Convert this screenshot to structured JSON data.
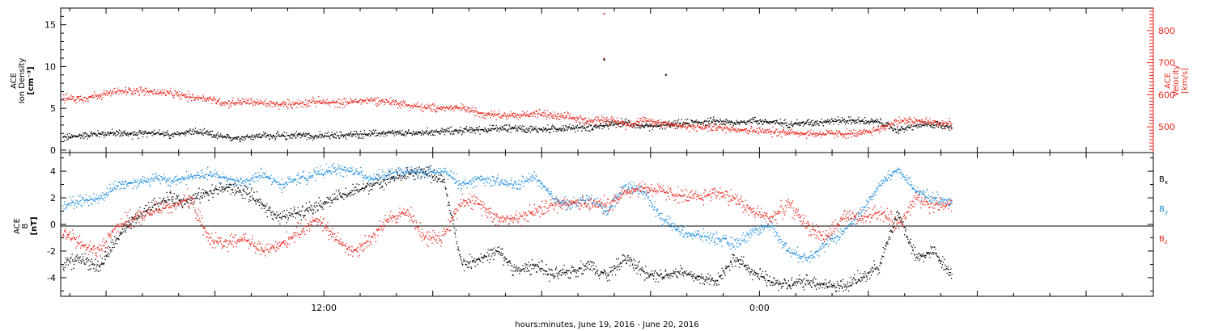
{
  "colors": {
    "black": "#000000",
    "red": "#e8261c",
    "blue": "#1f8ee0",
    "background": "#ffffff"
  },
  "chart_data": [
    {
      "type": "scatter",
      "panel": "top",
      "xlabel": "hours:minutes, June 19, 2016 - June 20, 2016",
      "x_unit": "hours since 2016-06-19 00:00",
      "xlim": [
        4.75,
        34.85
      ],
      "x_ticks": [
        {
          "value": 12,
          "label": "12:00"
        },
        {
          "value": 24,
          "label": "0:00"
        }
      ],
      "left_axis": {
        "label_lines": [
          "ACE",
          "Ion Density",
          "[cm⁻³]"
        ],
        "ylim": [
          -0.3,
          17
        ],
        "ticks": [
          0,
          5,
          10,
          15
        ]
      },
      "right_axis": {
        "label_lines": [
          "ACE",
          "Velocity",
          "[km/s]"
        ],
        "ylim": [
          420,
          870
        ],
        "ticks": [
          500,
          600,
          700,
          800
        ]
      },
      "series": [
        {
          "color": "black",
          "axis": "left",
          "x": [
            4.8,
            5.3,
            5.8,
            6.3,
            6.8,
            7.3,
            7.8,
            8.3,
            8.8,
            9.3,
            9.8,
            10.3,
            10.8,
            11.3,
            11.8,
            12.3,
            12.8,
            13.3,
            13.8,
            14.3,
            14.8,
            15.3,
            15.8,
            16.3,
            16.8,
            17.3,
            17.8,
            18.3,
            18.8,
            19.3,
            19.8,
            20.3,
            20.8,
            21.3,
            21.8,
            22.3,
            22.8,
            23.3,
            23.8,
            24.3,
            24.8,
            25.3,
            25.8,
            26.3,
            26.8,
            27.3,
            27.8,
            28.3,
            28.8,
            29.3
          ],
          "y": [
            1.5,
            1.8,
            2.0,
            2.1,
            1.9,
            2.2,
            1.8,
            2.3,
            2.0,
            1.5,
            1.6,
            1.8,
            1.7,
            1.9,
            1.7,
            1.8,
            1.9,
            2.0,
            2.1,
            2.0,
            2.2,
            2.3,
            2.4,
            2.5,
            2.6,
            2.7,
            2.5,
            2.6,
            2.7,
            2.8,
            3.0,
            3.4,
            2.8,
            3.0,
            3.2,
            3.4,
            3.5,
            3.3,
            3.6,
            3.4,
            3.2,
            3.3,
            3.5,
            3.6,
            3.5,
            3.4,
            2.4,
            3.0,
            3.1,
            2.9
          ],
          "scatter": 0.6
        },
        {
          "color": "red",
          "axis": "right",
          "x": [
            4.8,
            5.3,
            5.8,
            6.3,
            6.8,
            7.3,
            7.8,
            8.3,
            8.8,
            9.3,
            9.8,
            10.3,
            10.8,
            11.3,
            11.8,
            12.3,
            12.8,
            13.3,
            13.8,
            14.3,
            14.8,
            15.3,
            15.8,
            16.3,
            16.8,
            17.3,
            17.8,
            18.3,
            18.8,
            19.3,
            19.8,
            20.3,
            20.8,
            21.3,
            21.8,
            22.3,
            22.8,
            23.3,
            23.8,
            24.3,
            24.8,
            25.3,
            25.8,
            26.3,
            26.8,
            27.3,
            27.8,
            28.3,
            28.8,
            29.3
          ],
          "y": [
            590,
            590,
            600,
            610,
            615,
            610,
            605,
            595,
            590,
            575,
            580,
            575,
            570,
            575,
            580,
            575,
            580,
            585,
            580,
            570,
            560,
            560,
            560,
            545,
            540,
            535,
            545,
            535,
            530,
            520,
            525,
            510,
            520,
            515,
            505,
            500,
            500,
            495,
            490,
            485,
            485,
            480,
            480,
            480,
            480,
            495,
            520,
            520,
            515,
            510
          ],
          "scatter": 18
        }
      ],
      "outliers": [
        {
          "series": "red",
          "x": 19.7,
          "y": 855
        },
        {
          "series": "red",
          "x": 19.7,
          "y": 715
        },
        {
          "series": "black",
          "x": 19.7,
          "y": 10.9
        },
        {
          "series": "black",
          "x": 21.4,
          "y": 9.1
        }
      ]
    },
    {
      "type": "scatter",
      "panel": "bottom",
      "xlabel": "hours:minutes, June 19, 2016 - June 20, 2016",
      "xlim": [
        4.75,
        34.85
      ],
      "left_axis": {
        "label_lines": [
          "ACE",
          "B",
          "[nT]"
        ],
        "ylim": [
          -5.4,
          5.4
        ],
        "ticks": [
          -4,
          -2,
          0,
          2,
          4
        ]
      },
      "zero_line": 0,
      "legend_placement": "right",
      "series": [
        {
          "name": "Bx",
          "color": "black",
          "x": [
            4.8,
            5.3,
            5.8,
            6.3,
            6.8,
            7.3,
            7.8,
            8.3,
            8.8,
            9.3,
            9.8,
            10.3,
            10.8,
            11.3,
            11.8,
            12.3,
            12.8,
            13.3,
            13.8,
            14.3,
            14.8,
            15.3,
            15.8,
            16.3,
            16.8,
            17.3,
            17.8,
            18.3,
            18.8,
            19.3,
            19.8,
            20.3,
            20.8,
            21.3,
            21.8,
            22.3,
            22.8,
            23.3,
            23.8,
            24.3,
            24.8,
            25.3,
            25.8,
            26.3,
            26.8,
            27.3,
            27.8,
            28.3,
            28.8,
            29.3
          ],
          "y": [
            -3.0,
            -2.5,
            -3.2,
            -1.0,
            0.5,
            1.5,
            2.0,
            1.8,
            2.5,
            2.8,
            2.5,
            1.5,
            0.5,
            1.0,
            1.5,
            2.0,
            2.5,
            3.0,
            3.5,
            3.8,
            4.0,
            3.2,
            -3.0,
            -2.5,
            -2.0,
            -3.5,
            -3.0,
            -3.8,
            -3.5,
            -3.0,
            -3.8,
            -2.5,
            -3.5,
            -3.8,
            -3.5,
            -4.0,
            -4.2,
            -2.5,
            -3.5,
            -4.3,
            -4.5,
            -4.2,
            -4.5,
            -4.6,
            -4.0,
            -3.0,
            1.0,
            -2.5,
            -2.0,
            -3.8
          ],
          "scatter": 0.7
        },
        {
          "name": "By",
          "color": "blue",
          "x": [
            4.8,
            5.3,
            5.8,
            6.3,
            6.8,
            7.3,
            7.8,
            8.3,
            8.8,
            9.3,
            9.8,
            10.3,
            10.8,
            11.3,
            11.8,
            12.3,
            12.8,
            13.3,
            13.8,
            14.3,
            14.8,
            15.3,
            15.8,
            16.3,
            16.8,
            17.3,
            17.8,
            18.3,
            18.8,
            19.3,
            19.8,
            20.3,
            20.8,
            21.3,
            21.8,
            22.3,
            22.8,
            23.3,
            23.8,
            24.3,
            24.8,
            25.3,
            25.8,
            26.3,
            26.8,
            27.3,
            27.8,
            28.3,
            28.8,
            29.3
          ],
          "y": [
            1.5,
            1.8,
            2.0,
            3.0,
            3.2,
            3.5,
            3.3,
            3.6,
            3.8,
            3.5,
            3.2,
            3.8,
            3.0,
            3.5,
            3.8,
            4.2,
            4.0,
            3.5,
            3.8,
            4.0,
            3.9,
            4.0,
            3.0,
            3.5,
            3.2,
            3.0,
            3.6,
            2.0,
            1.5,
            2.0,
            1.0,
            3.0,
            2.5,
            0.5,
            -0.5,
            -0.8,
            -1.0,
            -1.5,
            -0.5,
            0.0,
            -2.0,
            -2.5,
            -1.5,
            -0.5,
            1.0,
            3.0,
            4.2,
            2.5,
            2.0,
            1.8
          ],
          "scatter": 0.6
        },
        {
          "name": "Bz",
          "color": "red",
          "x": [
            4.8,
            5.3,
            5.8,
            6.3,
            6.8,
            7.3,
            7.8,
            8.3,
            8.8,
            9.3,
            9.8,
            10.3,
            10.8,
            11.3,
            11.8,
            12.3,
            12.8,
            13.3,
            13.8,
            14.3,
            14.8,
            15.3,
            15.8,
            16.3,
            16.8,
            17.3,
            17.8,
            18.3,
            18.8,
            19.3,
            19.8,
            20.3,
            20.8,
            21.3,
            21.8,
            22.3,
            22.8,
            23.3,
            23.8,
            24.3,
            24.8,
            25.3,
            25.8,
            26.3,
            26.8,
            27.3,
            27.8,
            28.3,
            28.8,
            29.3
          ],
          "y": [
            -0.5,
            -1.5,
            -2.0,
            0.0,
            0.5,
            1.0,
            1.5,
            2.0,
            -1.0,
            -1.5,
            -1.0,
            -2.0,
            -1.5,
            -0.5,
            0.5,
            -1.0,
            -2.0,
            -1.0,
            0.5,
            1.0,
            -1.0,
            -0.8,
            2.0,
            1.5,
            0.5,
            0.5,
            1.0,
            1.5,
            1.8,
            1.5,
            1.5,
            2.5,
            2.8,
            2.5,
            2.2,
            2.0,
            2.5,
            2.0,
            1.0,
            0.5,
            1.5,
            0.0,
            -1.0,
            0.5,
            0.5,
            1.0,
            0.0,
            2.0,
            1.5,
            1.5
          ],
          "scatter": 0.8
        }
      ]
    }
  ],
  "legend": [
    "B",
    "B",
    "B"
  ],
  "legend_subscripts": [
    "x",
    "y",
    "z"
  ]
}
